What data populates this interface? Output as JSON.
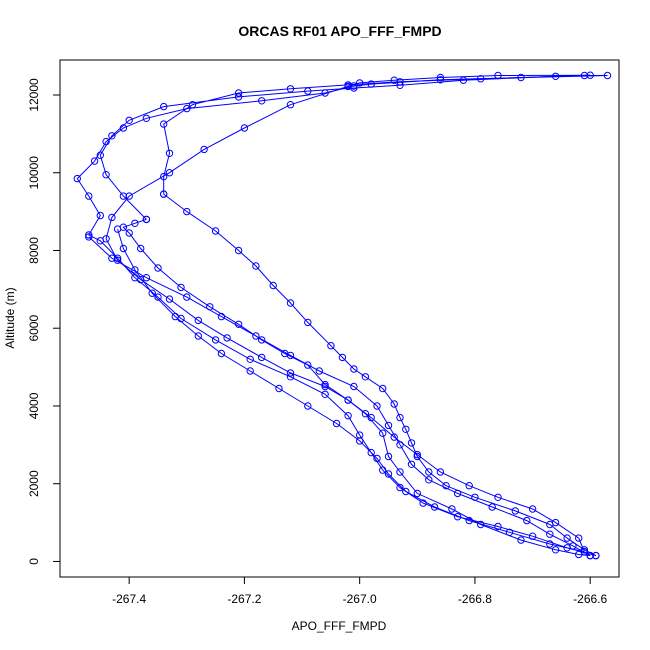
{
  "chart_data": {
    "type": "line",
    "title": "ORCAS RF01 APO_FFF_FMPD",
    "xlabel": "APO_FFF_FMPD",
    "ylabel": "Altitude (m)",
    "xlim": [
      -267.52,
      -266.55
    ],
    "ylim": [
      -400,
      12900
    ],
    "xticks": [
      -267.4,
      -267.2,
      -267.0,
      -266.8,
      -266.6
    ],
    "xtick_labels": [
      "-267.4",
      "-267.2",
      "-267.0",
      "-266.8",
      "-266.6"
    ],
    "yticks": [
      0,
      2000,
      4000,
      6000,
      8000,
      10000,
      12000
    ],
    "ytick_labels": [
      "0",
      "2000",
      "4000",
      "6000",
      "8000",
      "10000",
      "12000"
    ],
    "grid": false,
    "color": "#0000ff",
    "series": [
      {
        "points": [
          [
            -266.6,
            150
          ],
          [
            -266.62,
            180
          ],
          [
            -266.66,
            300
          ],
          [
            -266.72,
            550
          ],
          [
            -266.79,
            950
          ],
          [
            -266.84,
            1350
          ],
          [
            -266.9,
            1750
          ],
          [
            -266.93,
            2300
          ],
          [
            -266.95,
            2700
          ],
          [
            -266.96,
            3300
          ],
          [
            -266.99,
            3800
          ],
          [
            -267.02,
            4150
          ],
          [
            -267.06,
            4550
          ],
          [
            -267.09,
            5050
          ],
          [
            -267.13,
            5350
          ],
          [
            -267.17,
            5700
          ],
          [
            -267.21,
            6100
          ],
          [
            -267.26,
            6550
          ],
          [
            -267.31,
            7050
          ],
          [
            -267.35,
            7550
          ],
          [
            -267.38,
            8050
          ],
          [
            -267.4,
            8450
          ],
          [
            -267.41,
            8600
          ],
          [
            -267.39,
            8700
          ],
          [
            -267.37,
            8800
          ]
        ]
      },
      {
        "points": [
          [
            -267.37,
            8800
          ],
          [
            -267.41,
            9400
          ],
          [
            -267.44,
            9950
          ],
          [
            -267.45,
            10450
          ],
          [
            -267.43,
            10950
          ],
          [
            -267.4,
            11350
          ],
          [
            -267.34,
            11700
          ],
          [
            -267.21,
            11950
          ],
          [
            -267.09,
            12100
          ],
          [
            -267.01,
            12180
          ],
          [
            -266.93,
            12250
          ],
          [
            -266.82,
            12380
          ],
          [
            -266.66,
            12480
          ],
          [
            -266.61,
            12500
          ],
          [
            -266.57,
            12500
          ],
          [
            -266.79,
            12420
          ],
          [
            -266.93,
            12340
          ],
          [
            -267.02,
            12260
          ],
          [
            -267.12,
            12160
          ],
          [
            -267.21,
            12050
          ],
          [
            -267.29,
            11750
          ],
          [
            -267.34,
            11250
          ],
          [
            -267.33,
            10500
          ],
          [
            -267.34,
            9900
          ],
          [
            -267.34,
            9450
          ]
        ]
      },
      {
        "points": [
          [
            -267.34,
            9450
          ],
          [
            -267.3,
            9000
          ],
          [
            -267.25,
            8500
          ],
          [
            -267.21,
            8000
          ],
          [
            -267.18,
            7600
          ],
          [
            -267.15,
            7100
          ],
          [
            -267.12,
            6650
          ],
          [
            -267.09,
            6150
          ],
          [
            -267.05,
            5550
          ],
          [
            -267.03,
            5250
          ],
          [
            -267.01,
            4950
          ],
          [
            -266.99,
            4750
          ],
          [
            -266.96,
            4450
          ],
          [
            -266.94,
            4050
          ],
          [
            -266.93,
            3700
          ],
          [
            -266.92,
            3400
          ],
          [
            -266.91,
            3050
          ],
          [
            -266.9,
            2700
          ],
          [
            -266.88,
            2300
          ],
          [
            -266.85,
            1950
          ],
          [
            -266.8,
            1650
          ],
          [
            -266.73,
            1300
          ],
          [
            -266.67,
            950
          ],
          [
            -266.64,
            600
          ],
          [
            -266.61,
            300
          ],
          [
            -266.59,
            150
          ]
        ]
      },
      {
        "points": [
          [
            -266.59,
            150
          ],
          [
            -266.64,
            350
          ],
          [
            -266.7,
            650
          ],
          [
            -266.76,
            900
          ],
          [
            -266.83,
            1150
          ],
          [
            -266.89,
            1500
          ],
          [
            -266.93,
            1900
          ],
          [
            -266.96,
            2350
          ],
          [
            -266.98,
            2800
          ],
          [
            -267.0,
            3250
          ],
          [
            -267.02,
            3750
          ],
          [
            -267.06,
            4300
          ],
          [
            -267.12,
            4750
          ],
          [
            -267.19,
            5200
          ],
          [
            -267.25,
            5700
          ],
          [
            -267.31,
            6250
          ],
          [
            -267.35,
            6800
          ],
          [
            -267.39,
            7300
          ],
          [
            -267.42,
            7800
          ],
          [
            -267.45,
            8250
          ],
          [
            -267.47,
            8400
          ],
          [
            -267.45,
            8900
          ],
          [
            -267.47,
            9400
          ],
          [
            -267.49,
            9850
          ],
          [
            -267.46,
            10300
          ],
          [
            -267.44,
            10800
          ],
          [
            -267.41,
            11150
          ],
          [
            -267.37,
            11400
          ],
          [
            -267.3,
            11650
          ],
          [
            -267.17,
            11850
          ],
          [
            -267.06,
            12050
          ],
          [
            -267.01,
            12230
          ],
          [
            -266.98,
            12280
          ],
          [
            -266.86,
            12390
          ],
          [
            -266.72,
            12450
          ],
          [
            -266.6,
            12510
          ],
          [
            -266.76,
            12500
          ],
          [
            -266.86,
            12450
          ],
          [
            -266.94,
            12380
          ],
          [
            -267.0,
            12310
          ],
          [
            -267.02,
            12220
          ]
        ]
      },
      {
        "points": [
          [
            -267.02,
            12220
          ],
          [
            -267.12,
            11750
          ],
          [
            -267.2,
            11150
          ],
          [
            -267.27,
            10600
          ],
          [
            -267.33,
            10000
          ],
          [
            -267.4,
            9400
          ],
          [
            -267.43,
            8850
          ],
          [
            -267.44,
            8300
          ],
          [
            -267.42,
            7750
          ],
          [
            -267.38,
            7250
          ],
          [
            -267.33,
            6750
          ],
          [
            -267.28,
            6200
          ],
          [
            -267.23,
            5750
          ],
          [
            -267.17,
            5250
          ],
          [
            -267.12,
            4850
          ],
          [
            -267.06,
            4500
          ],
          [
            -267.02,
            4150
          ],
          [
            -266.98,
            3700
          ],
          [
            -266.94,
            3200
          ],
          [
            -266.9,
            2750
          ],
          [
            -266.86,
            2300
          ],
          [
            -266.81,
            1950
          ],
          [
            -266.76,
            1650
          ],
          [
            -266.7,
            1350
          ],
          [
            -266.66,
            1000
          ],
          [
            -266.62,
            600
          ],
          [
            -266.61,
            250
          ]
        ]
      },
      {
        "points": [
          [
            -266.61,
            250
          ],
          [
            -266.67,
            450
          ],
          [
            -266.74,
            750
          ],
          [
            -266.81,
            1050
          ],
          [
            -266.87,
            1400
          ],
          [
            -266.92,
            1800
          ],
          [
            -266.95,
            2250
          ],
          [
            -266.97,
            2650
          ],
          [
            -267.0,
            3100
          ],
          [
            -267.04,
            3550
          ],
          [
            -267.09,
            4000
          ],
          [
            -267.14,
            4450
          ],
          [
            -267.19,
            4900
          ],
          [
            -267.24,
            5350
          ],
          [
            -267.28,
            5800
          ],
          [
            -267.32,
            6300
          ],
          [
            -267.36,
            6900
          ],
          [
            -267.39,
            7500
          ],
          [
            -267.41,
            8050
          ],
          [
            -267.42,
            8550
          ]
        ]
      },
      {
        "points": [
          [
            -267.47,
            8350
          ],
          [
            -267.43,
            7800
          ],
          [
            -267.37,
            7300
          ],
          [
            -267.3,
            6800
          ],
          [
            -267.24,
            6300
          ],
          [
            -267.18,
            5800
          ],
          [
            -267.12,
            5300
          ],
          [
            -267.07,
            4900
          ],
          [
            -267.01,
            4500
          ],
          [
            -266.97,
            4000
          ],
          [
            -266.95,
            3500
          ],
          [
            -266.93,
            3000
          ],
          [
            -266.91,
            2500
          ],
          [
            -266.88,
            2100
          ],
          [
            -266.83,
            1750
          ],
          [
            -266.77,
            1400
          ],
          [
            -266.71,
            1050
          ],
          [
            -266.67,
            700
          ],
          [
            -266.63,
            400
          ],
          [
            -266.6,
            150
          ]
        ]
      }
    ]
  }
}
